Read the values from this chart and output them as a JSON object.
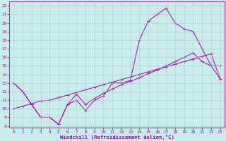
{
  "xlabel": "Windchill (Refroidissement éolien,°C)",
  "background_color": "#c8ecec",
  "line_color": "#aa00aa",
  "grid_color": "#b0cccc",
  "xlim": [
    -0.5,
    23.5
  ],
  "ylim": [
    7.8,
    22.5
  ],
  "xticks": [
    0,
    1,
    2,
    3,
    4,
    5,
    6,
    7,
    8,
    9,
    10,
    11,
    12,
    13,
    14,
    15,
    16,
    17,
    18,
    19,
    20,
    21,
    22,
    23
  ],
  "yticks": [
    8,
    9,
    10,
    11,
    12,
    13,
    14,
    15,
    16,
    17,
    18,
    19,
    20,
    21,
    22
  ],
  "line1_x": [
    0,
    1,
    2,
    3,
    4,
    5,
    6,
    7,
    8,
    9,
    10,
    11,
    12,
    13,
    14,
    15,
    16,
    17,
    18,
    19,
    20,
    21,
    22,
    23
  ],
  "line1_y": [
    13,
    12,
    10.5,
    9,
    9.0,
    8.2,
    10.5,
    11.0,
    9.8,
    11.0,
    11.5,
    13,
    13,
    13.3,
    18,
    20.2,
    21,
    21.7,
    20,
    19.3,
    19,
    17,
    15,
    15
  ],
  "line2_x": [
    0,
    1,
    2,
    3,
    4,
    5,
    6,
    7,
    8,
    9,
    10,
    11,
    12,
    13,
    14,
    15,
    16,
    17,
    18,
    19,
    20,
    21,
    22,
    23
  ],
  "line2_y": [
    13,
    12,
    10.5,
    9,
    9.0,
    8.2,
    10.5,
    11.7,
    10.5,
    11.2,
    11.8,
    12.3,
    12.8,
    13.2,
    13.6,
    14.1,
    14.5,
    15,
    15.5,
    16,
    16.5,
    15.5,
    15,
    13.5
  ],
  "line3_x": [
    0,
    1,
    2,
    3,
    4,
    5,
    6,
    7,
    8,
    9,
    10,
    11,
    12,
    13,
    14,
    15,
    16,
    17,
    18,
    19,
    20,
    21,
    22,
    23
  ],
  "line3_y": [
    10,
    10.3,
    10.6,
    10.9,
    11.0,
    11.3,
    11.6,
    11.9,
    12.2,
    12.5,
    12.8,
    13.1,
    13.4,
    13.7,
    14.0,
    14.3,
    14.6,
    14.9,
    15.2,
    15.5,
    15.8,
    16.1,
    16.4,
    13.5
  ]
}
